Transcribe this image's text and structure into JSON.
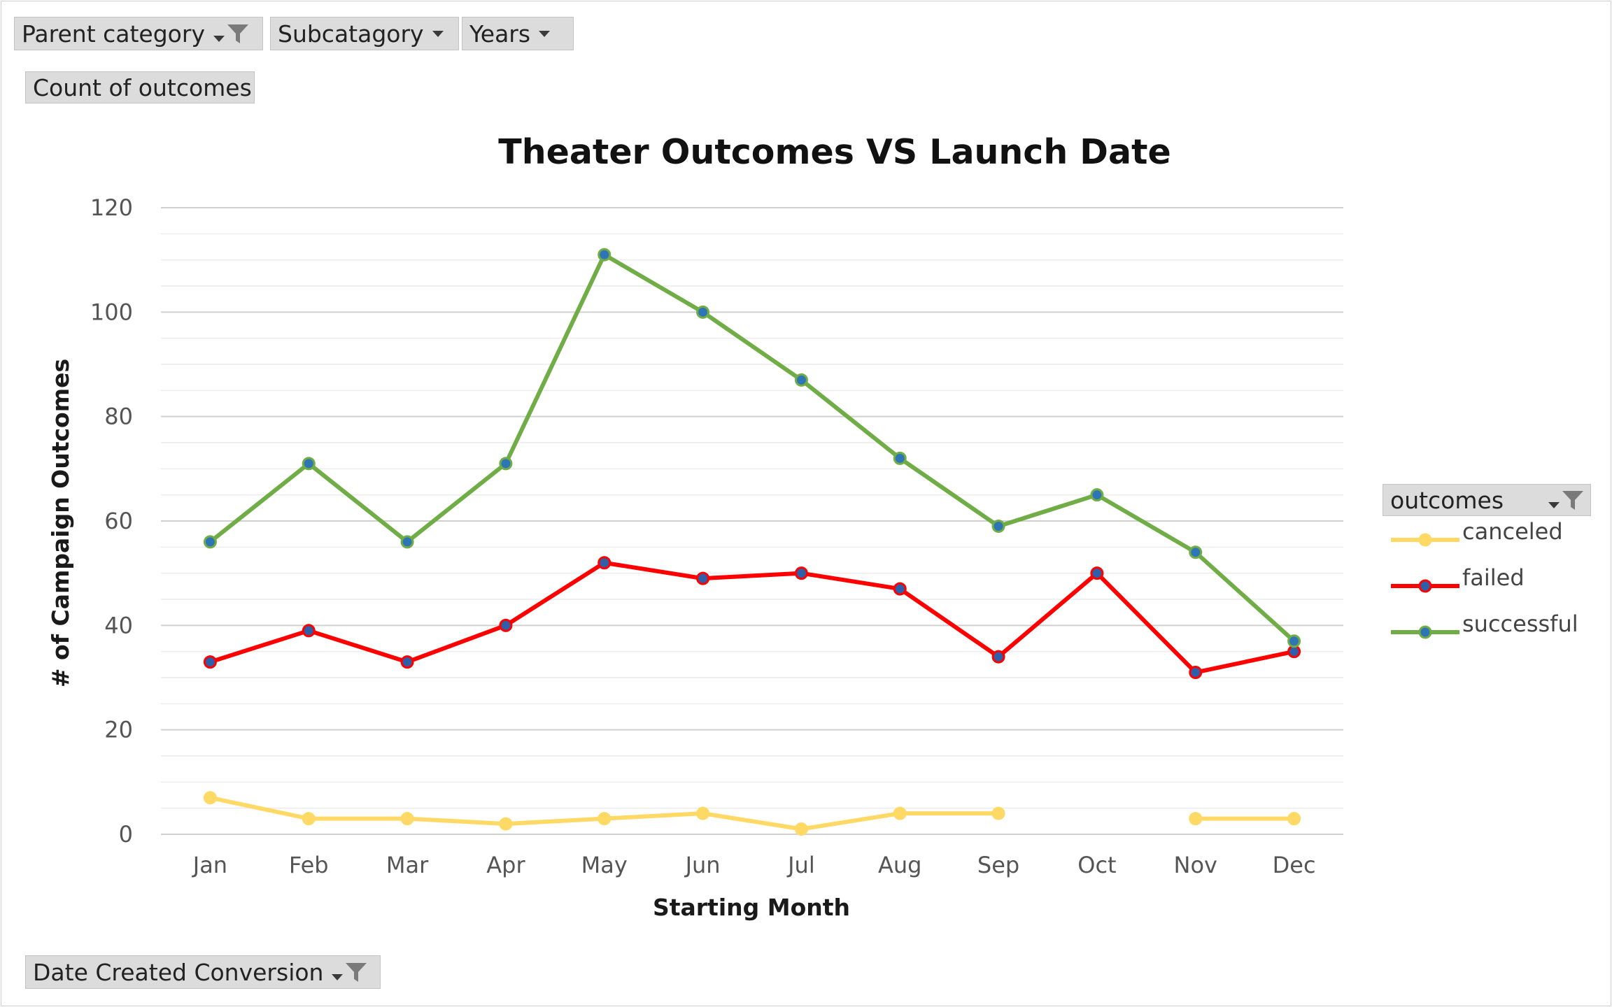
{
  "filters": {
    "parent_category": "Parent category",
    "subcategory": "Subcatagory",
    "years": "Years",
    "values_field": "Count of outcomes",
    "axis_field": "Date Created Conversion",
    "legend_field": "outcomes"
  },
  "icons": [
    "chevron-down-icon",
    "filter-icon"
  ],
  "chart_data": {
    "type": "line",
    "title": "Theater Outcomes VS Launch Date",
    "xlabel": "Starting Month",
    "ylabel": "# of Campaign  Outcomes",
    "categories": [
      "Jan",
      "Feb",
      "Mar",
      "Apr",
      "May",
      "Jun",
      "Jul",
      "Aug",
      "Sep",
      "Oct",
      "Nov",
      "Dec"
    ],
    "ylim": [
      0,
      120
    ],
    "yticks": [
      0,
      20,
      40,
      60,
      80,
      100,
      120
    ],
    "grid": true,
    "legend_position": "right",
    "series": [
      {
        "name": "canceled",
        "color": "#FFD966",
        "marker_color": "#FFD966",
        "values": [
          7,
          3,
          3,
          2,
          3,
          4,
          1,
          4,
          4,
          null,
          3,
          3
        ]
      },
      {
        "name": "failed",
        "color": "#FF0000",
        "marker_color": "#2E5FA8",
        "values": [
          33,
          39,
          33,
          40,
          52,
          49,
          50,
          47,
          34,
          50,
          31,
          35
        ]
      },
      {
        "name": "successful",
        "color": "#70AD47",
        "marker_color": "#2E75B6",
        "values": [
          56,
          71,
          56,
          71,
          111,
          100,
          87,
          72,
          59,
          65,
          54,
          37
        ]
      }
    ]
  }
}
